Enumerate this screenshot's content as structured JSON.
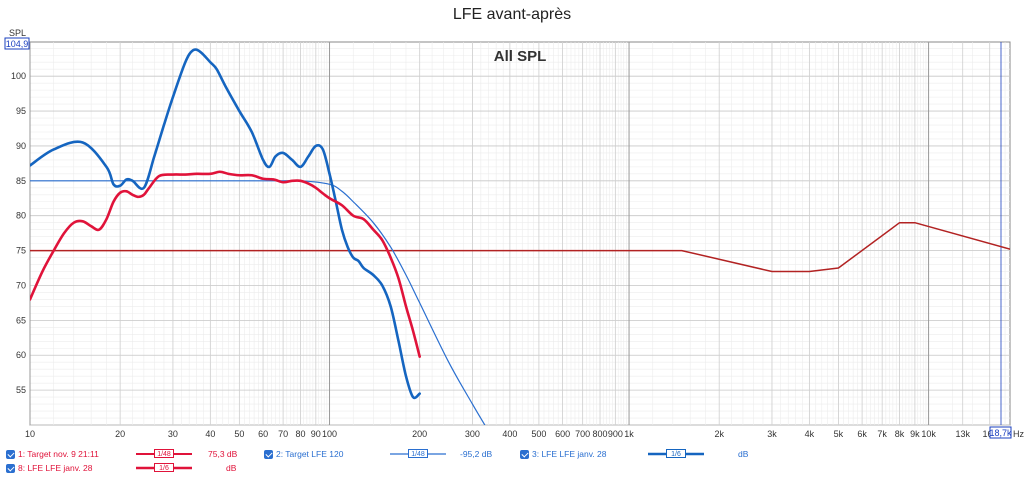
{
  "chart_data": {
    "type": "line",
    "title": "LFE avant-après",
    "inner_title": "All SPL",
    "ylabel": "SPL",
    "xlabel_unit": "Hz",
    "x_scale": "log",
    "xlim": [
      10,
      18700
    ],
    "ylim": [
      50,
      104.9
    ],
    "y_ticks": [
      55,
      60,
      65,
      70,
      75,
      80,
      85,
      90,
      95,
      100
    ],
    "y_top_readout": "104,9",
    "x_right_readout": "18,7k",
    "x_ticks": [
      {
        "v": 10,
        "label": "10"
      },
      {
        "v": 20,
        "label": "20"
      },
      {
        "v": 30,
        "label": "30"
      },
      {
        "v": 40,
        "label": "40"
      },
      {
        "v": 50,
        "label": "50"
      },
      {
        "v": 60,
        "label": "60"
      },
      {
        "v": 70,
        "label": "70"
      },
      {
        "v": 80,
        "label": "80"
      },
      {
        "v": 90,
        "label": "90"
      },
      {
        "v": 100,
        "label": "100"
      },
      {
        "v": 200,
        "label": "200"
      },
      {
        "v": 300,
        "label": "300"
      },
      {
        "v": 400,
        "label": "400"
      },
      {
        "v": 500,
        "label": "500"
      },
      {
        "v": 600,
        "label": "600"
      },
      {
        "v": 700,
        "label": "700"
      },
      {
        "v": 800,
        "label": "800"
      },
      {
        "v": 900,
        "label": "900"
      },
      {
        "v": 1000,
        "label": "1k"
      },
      {
        "v": 2000,
        "label": "2k"
      },
      {
        "v": 3000,
        "label": "3k"
      },
      {
        "v": 4000,
        "label": "4k"
      },
      {
        "v": 5000,
        "label": "5k"
      },
      {
        "v": 6000,
        "label": "6k"
      },
      {
        "v": 7000,
        "label": "7k"
      },
      {
        "v": 8000,
        "label": "8k"
      },
      {
        "v": 9000,
        "label": "9k"
      },
      {
        "v": 10000,
        "label": "10k"
      },
      {
        "v": 13000,
        "label": "13k"
      },
      {
        "v": 16000,
        "label": "16k"
      }
    ],
    "grid": true,
    "series": [
      {
        "name": "1: Target nov. 9 21:11",
        "color": "#b22222",
        "width": 1.5,
        "x": [
          10,
          1500,
          3000,
          4000,
          5000,
          8000,
          9000,
          18700
        ],
        "y": [
          75,
          75,
          72,
          72,
          72.5,
          79,
          79,
          75.2
        ]
      },
      {
        "name": "2: Target LFE 120",
        "color": "#2a6fd0",
        "width": 1.2,
        "x": [
          10,
          60,
          80,
          100,
          110,
          120,
          140,
          160,
          180,
          200,
          250,
          300,
          330
        ],
        "y": [
          85,
          85,
          85,
          84.5,
          83.5,
          82,
          79,
          75.5,
          71.5,
          67.5,
          59,
          53,
          50
        ]
      },
      {
        "name": "3: LFE LFE janv. 28",
        "color": "#1565c0",
        "width": 2.6,
        "x": [
          10,
          12,
          15,
          18,
          19,
          20,
          21,
          22,
          24,
          26,
          28,
          30,
          33,
          35,
          37,
          40,
          42,
          45,
          50,
          55,
          60,
          63,
          66,
          70,
          75,
          80,
          85,
          90,
          95,
          100,
          105,
          110,
          115,
          120,
          125,
          130,
          140,
          150,
          160,
          170,
          180,
          190,
          200
        ],
        "y": [
          87.2,
          89.5,
          90.5,
          87,
          84.5,
          84.3,
          85.2,
          85,
          84,
          88.5,
          93,
          97,
          102,
          103.7,
          103.5,
          102,
          101,
          98.5,
          95,
          92,
          88,
          87,
          88.5,
          89,
          88,
          87,
          88.5,
          90,
          89.5,
          86,
          82,
          78,
          75.5,
          74,
          73.5,
          72.5,
          71.5,
          70,
          67,
          62,
          57,
          54,
          54.5
        ]
      },
      {
        "name": "8: LFE LFE janv. 28",
        "color": "#e0133a",
        "width": 2.6,
        "x": [
          10,
          11,
          12,
          13,
          14,
          15,
          16,
          17,
          18,
          19,
          20,
          21,
          22,
          23,
          24,
          25,
          27,
          30,
          33,
          36,
          40,
          43,
          46,
          50,
          55,
          60,
          65,
          70,
          75,
          80,
          85,
          90,
          95,
          100,
          110,
          120,
          130,
          140,
          150,
          160,
          170,
          180,
          190,
          200
        ],
        "y": [
          68,
          72,
          75,
          77.5,
          79,
          79.2,
          78.5,
          78,
          79.5,
          82,
          83.3,
          83.5,
          83,
          82.7,
          83,
          84,
          85.7,
          85.9,
          85.9,
          86,
          86,
          86.3,
          86,
          85.8,
          85.8,
          85.3,
          85.2,
          84.8,
          85,
          85,
          84.6,
          84,
          83.2,
          82.5,
          81.5,
          80,
          79.5,
          78,
          76.5,
          74,
          71,
          67,
          63.5,
          59.8
        ]
      }
    ]
  },
  "legend": {
    "row1": [
      {
        "label": "1: Target nov. 9 21:11",
        "smoothing": "1/48",
        "value": "75,3 dB",
        "color": "#e0133a"
      },
      {
        "label": "2: Target LFE 120",
        "smoothing": "1/48",
        "value": "-95,2 dB",
        "color": "#2a6fd0"
      },
      {
        "label": "3: LFE LFE janv. 28",
        "smoothing": "1/6",
        "value": "dB",
        "color": "#2a6fd0"
      }
    ],
    "row2": [
      {
        "label": "8: LFE LFE janv. 28",
        "smoothing": "1/6",
        "value": "dB",
        "color": "#e0133a"
      }
    ]
  }
}
